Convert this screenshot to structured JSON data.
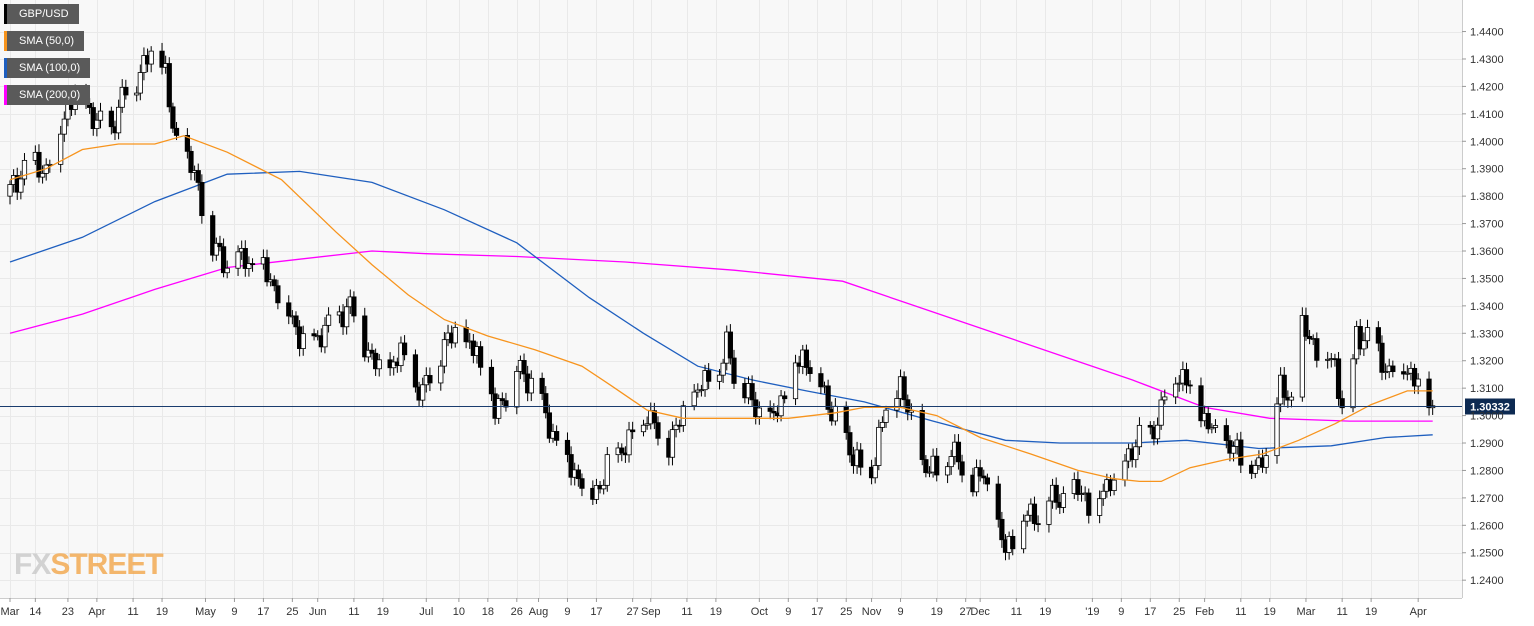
{
  "legend": [
    {
      "label": "GBP/USD",
      "color": "#000000"
    },
    {
      "label": "SMA (50,0)",
      "color": "#f7941d"
    },
    {
      "label": "SMA (100,0)",
      "color": "#1f5fbf"
    },
    {
      "label": "SMA (200,0)",
      "color": "#ff00ff"
    }
  ],
  "logo": {
    "fx": "FX",
    "street": "STREET"
  },
  "chart_data": {
    "type": "candlestick",
    "symbol": "GBP/USD",
    "grid": true,
    "legend_position": "top-left",
    "y_axis": {
      "side": "right",
      "ylim": [
        1.2335,
        1.4515
      ],
      "ticks": [
        "1.4400",
        "1.4300",
        "1.4200",
        "1.4100",
        "1.4000",
        "1.3900",
        "1.3800",
        "1.3700",
        "1.3600",
        "1.3500",
        "1.3400",
        "1.3300",
        "1.3200",
        "1.3100",
        "1.3000",
        "1.2900",
        "1.2800",
        "1.2700",
        "1.2600",
        "1.2500",
        "1.2400"
      ]
    },
    "x_axis": {
      "ticks": [
        {
          "label": "Mar",
          "day": 0
        },
        {
          "label": "14",
          "day": 7
        },
        {
          "label": "23",
          "day": 16
        },
        {
          "label": "Apr",
          "day": 24
        },
        {
          "label": "11",
          "day": 34
        },
        {
          "label": "19",
          "day": 42
        },
        {
          "label": "May",
          "day": 54
        },
        {
          "label": "9",
          "day": 62
        },
        {
          "label": "17",
          "day": 70
        },
        {
          "label": "25",
          "day": 78
        },
        {
          "label": "Jun",
          "day": 85
        },
        {
          "label": "11",
          "day": 95
        },
        {
          "label": "19",
          "day": 103
        },
        {
          "label": "Jul",
          "day": 115
        },
        {
          "label": "10",
          "day": 124
        },
        {
          "label": "18",
          "day": 132
        },
        {
          "label": "26",
          "day": 140
        },
        {
          "label": "Aug",
          "day": 146
        },
        {
          "label": "9",
          "day": 154
        },
        {
          "label": "17",
          "day": 162
        },
        {
          "label": "27",
          "day": 172
        },
        {
          "label": "Sep",
          "day": 177
        },
        {
          "label": "11",
          "day": 187
        },
        {
          "label": "19",
          "day": 195
        },
        {
          "label": "Oct",
          "day": 207
        },
        {
          "label": "9",
          "day": 215
        },
        {
          "label": "17",
          "day": 223
        },
        {
          "label": "25",
          "day": 231
        },
        {
          "label": "Nov",
          "day": 238
        },
        {
          "label": "9",
          "day": 246
        },
        {
          "label": "19",
          "day": 256
        },
        {
          "label": "27",
          "day": 264
        },
        {
          "label": "Dec",
          "day": 268
        },
        {
          "label": "11",
          "day": 278
        },
        {
          "label": "19",
          "day": 286
        },
        {
          "label": "'19",
          "day": 299
        },
        {
          "label": "9",
          "day": 307
        },
        {
          "label": "17",
          "day": 315
        },
        {
          "label": "25",
          "day": 323
        },
        {
          "label": "Feb",
          "day": 330
        },
        {
          "label": "11",
          "day": 340
        },
        {
          "label": "19",
          "day": 348
        },
        {
          "label": "Mar",
          "day": 358
        },
        {
          "label": "11",
          "day": 368
        },
        {
          "label": "19",
          "day": 376
        },
        {
          "label": "Apr",
          "day": 389
        }
      ]
    },
    "last_price": {
      "value": 1.30332,
      "label": "1.30332"
    },
    "anchors": [
      {
        "day": 0,
        "close": 1.382
      },
      {
        "day": 5,
        "close": 1.393
      },
      {
        "day": 10,
        "close": 1.39
      },
      {
        "day": 16,
        "close": 1.414
      },
      {
        "day": 20,
        "close": 1.418
      },
      {
        "day": 24,
        "close": 1.406
      },
      {
        "day": 28,
        "close": 1.405
      },
      {
        "day": 32,
        "close": 1.418
      },
      {
        "day": 36,
        "close": 1.425
      },
      {
        "day": 40,
        "close": 1.433
      },
      {
        "day": 43,
        "close": 1.425
      },
      {
        "day": 45,
        "close": 1.402
      },
      {
        "day": 49,
        "close": 1.394
      },
      {
        "day": 53,
        "close": 1.378
      },
      {
        "day": 55,
        "close": 1.362
      },
      {
        "day": 60,
        "close": 1.355
      },
      {
        "day": 65,
        "close": 1.357
      },
      {
        "day": 70,
        "close": 1.353
      },
      {
        "day": 74,
        "close": 1.346
      },
      {
        "day": 80,
        "close": 1.33
      },
      {
        "day": 83,
        "close": 1.325
      },
      {
        "day": 86,
        "close": 1.331
      },
      {
        "day": 91,
        "close": 1.337
      },
      {
        "day": 94,
        "close": 1.341
      },
      {
        "day": 98,
        "close": 1.327
      },
      {
        "day": 102,
        "close": 1.316
      },
      {
        "day": 105,
        "close": 1.318
      },
      {
        "day": 108,
        "close": 1.322
      },
      {
        "day": 111,
        "close": 1.313
      },
      {
        "day": 114,
        "close": 1.307
      },
      {
        "day": 117,
        "close": 1.319
      },
      {
        "day": 120,
        "close": 1.324
      },
      {
        "day": 123,
        "close": 1.331
      },
      {
        "day": 126,
        "close": 1.324
      },
      {
        "day": 129,
        "close": 1.323
      },
      {
        "day": 132,
        "close": 1.31
      },
      {
        "day": 134,
        "close": 1.3
      },
      {
        "day": 137,
        "close": 1.309
      },
      {
        "day": 140,
        "close": 1.317
      },
      {
        "day": 144,
        "close": 1.313
      },
      {
        "day": 148,
        "close": 1.3
      },
      {
        "day": 152,
        "close": 1.288
      },
      {
        "day": 157,
        "close": 1.278
      },
      {
        "day": 160,
        "close": 1.272
      },
      {
        "day": 163,
        "close": 1.275
      },
      {
        "day": 166,
        "close": 1.284
      },
      {
        "day": 170,
        "close": 1.29
      },
      {
        "day": 173,
        "close": 1.292
      },
      {
        "day": 176,
        "close": 1.302
      },
      {
        "day": 178,
        "close": 1.295
      },
      {
        "day": 181,
        "close": 1.288
      },
      {
        "day": 185,
        "close": 1.297
      },
      {
        "day": 189,
        "close": 1.307
      },
      {
        "day": 193,
        "close": 1.313
      },
      {
        "day": 196,
        "close": 1.315
      },
      {
        "day": 198,
        "close": 1.325
      },
      {
        "day": 201,
        "close": 1.312
      },
      {
        "day": 204,
        "close": 1.306
      },
      {
        "day": 207,
        "close": 1.302
      },
      {
        "day": 210,
        "close": 1.296
      },
      {
        "day": 213,
        "close": 1.306
      },
      {
        "day": 216,
        "close": 1.315
      },
      {
        "day": 219,
        "close": 1.322
      },
      {
        "day": 222,
        "close": 1.318
      },
      {
        "day": 225,
        "close": 1.308
      },
      {
        "day": 228,
        "close": 1.3
      },
      {
        "day": 231,
        "close": 1.29
      },
      {
        "day": 234,
        "close": 1.285
      },
      {
        "day": 237,
        "close": 1.272
      },
      {
        "day": 240,
        "close": 1.294
      },
      {
        "day": 243,
        "close": 1.306
      },
      {
        "day": 246,
        "close": 1.313
      },
      {
        "day": 249,
        "close": 1.296
      },
      {
        "day": 252,
        "close": 1.283
      },
      {
        "day": 256,
        "close": 1.278
      },
      {
        "day": 260,
        "close": 1.287
      },
      {
        "day": 263,
        "close": 1.28
      },
      {
        "day": 266,
        "close": 1.275
      },
      {
        "day": 269,
        "close": 1.278
      },
      {
        "day": 272,
        "close": 1.262
      },
      {
        "day": 275,
        "close": 1.25
      },
      {
        "day": 278,
        "close": 1.258
      },
      {
        "day": 281,
        "close": 1.263
      },
      {
        "day": 285,
        "close": 1.265
      },
      {
        "day": 289,
        "close": 1.271
      },
      {
        "day": 293,
        "close": 1.269
      },
      {
        "day": 296,
        "close": 1.275
      },
      {
        "day": 299,
        "close": 1.262
      },
      {
        "day": 302,
        "close": 1.275
      },
      {
        "day": 305,
        "close": 1.277
      },
      {
        "day": 308,
        "close": 1.285
      },
      {
        "day": 311,
        "close": 1.29
      },
      {
        "day": 315,
        "close": 1.294
      },
      {
        "day": 318,
        "close": 1.301
      },
      {
        "day": 321,
        "close": 1.318
      },
      {
        "day": 324,
        "close": 1.313
      },
      {
        "day": 327,
        "close": 1.308
      },
      {
        "day": 330,
        "close": 1.298
      },
      {
        "day": 333,
        "close": 1.292
      },
      {
        "day": 336,
        "close": 1.289
      },
      {
        "day": 339,
        "close": 1.286
      },
      {
        "day": 342,
        "close": 1.283
      },
      {
        "day": 345,
        "close": 1.279
      },
      {
        "day": 348,
        "close": 1.292
      },
      {
        "day": 351,
        "close": 1.309
      },
      {
        "day": 354,
        "close": 1.306
      },
      {
        "day": 357,
        "close": 1.331
      },
      {
        "day": 360,
        "close": 1.327
      },
      {
        "day": 363,
        "close": 1.322
      },
      {
        "day": 366,
        "close": 1.319
      },
      {
        "day": 369,
        "close": 1.297
      },
      {
        "day": 372,
        "close": 1.33
      },
      {
        "day": 375,
        "close": 1.329
      },
      {
        "day": 378,
        "close": 1.323
      },
      {
        "day": 381,
        "close": 1.316
      },
      {
        "day": 384,
        "close": 1.321
      },
      {
        "day": 387,
        "close": 1.316
      },
      {
        "day": 390,
        "close": 1.308
      },
      {
        "day": 393,
        "close": 1.303
      }
    ],
    "sma50": [
      {
        "day": 0,
        "value": 1.386
      },
      {
        "day": 10,
        "value": 1.39
      },
      {
        "day": 20,
        "value": 1.397
      },
      {
        "day": 30,
        "value": 1.399
      },
      {
        "day": 40,
        "value": 1.399
      },
      {
        "day": 48,
        "value": 1.402
      },
      {
        "day": 60,
        "value": 1.396
      },
      {
        "day": 75,
        "value": 1.386
      },
      {
        "day": 90,
        "value": 1.367
      },
      {
        "day": 100,
        "value": 1.355
      },
      {
        "day": 110,
        "value": 1.344
      },
      {
        "day": 120,
        "value": 1.335
      },
      {
        "day": 132,
        "value": 1.329
      },
      {
        "day": 145,
        "value": 1.324
      },
      {
        "day": 158,
        "value": 1.318
      },
      {
        "day": 166,
        "value": 1.311
      },
      {
        "day": 176,
        "value": 1.302
      },
      {
        "day": 186,
        "value": 1.299
      },
      {
        "day": 200,
        "value": 1.299
      },
      {
        "day": 215,
        "value": 1.299
      },
      {
        "day": 228,
        "value": 1.301
      },
      {
        "day": 236,
        "value": 1.303
      },
      {
        "day": 246,
        "value": 1.303
      },
      {
        "day": 256,
        "value": 1.3
      },
      {
        "day": 268,
        "value": 1.292
      },
      {
        "day": 282,
        "value": 1.286
      },
      {
        "day": 295,
        "value": 1.28
      },
      {
        "day": 305,
        "value": 1.277
      },
      {
        "day": 312,
        "value": 1.276
      },
      {
        "day": 318,
        "value": 1.276
      },
      {
        "day": 326,
        "value": 1.281
      },
      {
        "day": 336,
        "value": 1.284
      },
      {
        "day": 346,
        "value": 1.286
      },
      {
        "day": 356,
        "value": 1.291
      },
      {
        "day": 366,
        "value": 1.297
      },
      {
        "day": 376,
        "value": 1.304
      },
      {
        "day": 386,
        "value": 1.309
      },
      {
        "day": 393,
        "value": 1.309
      }
    ],
    "sma100": [
      {
        "day": 0,
        "value": 1.356
      },
      {
        "day": 20,
        "value": 1.365
      },
      {
        "day": 40,
        "value": 1.378
      },
      {
        "day": 60,
        "value": 1.388
      },
      {
        "day": 80,
        "value": 1.389
      },
      {
        "day": 100,
        "value": 1.385
      },
      {
        "day": 120,
        "value": 1.375
      },
      {
        "day": 140,
        "value": 1.363
      },
      {
        "day": 160,
        "value": 1.343
      },
      {
        "day": 175,
        "value": 1.33
      },
      {
        "day": 190,
        "value": 1.318
      },
      {
        "day": 205,
        "value": 1.313
      },
      {
        "day": 220,
        "value": 1.309
      },
      {
        "day": 236,
        "value": 1.305
      },
      {
        "day": 255,
        "value": 1.298
      },
      {
        "day": 275,
        "value": 1.291
      },
      {
        "day": 290,
        "value": 1.29
      },
      {
        "day": 310,
        "value": 1.29
      },
      {
        "day": 325,
        "value": 1.291
      },
      {
        "day": 345,
        "value": 1.288
      },
      {
        "day": 365,
        "value": 1.289
      },
      {
        "day": 380,
        "value": 1.292
      },
      {
        "day": 393,
        "value": 1.293
      }
    ],
    "sma200": [
      {
        "day": 0,
        "value": 1.33
      },
      {
        "day": 20,
        "value": 1.337
      },
      {
        "day": 40,
        "value": 1.346
      },
      {
        "day": 60,
        "value": 1.354
      },
      {
        "day": 80,
        "value": 1.357
      },
      {
        "day": 100,
        "value": 1.36
      },
      {
        "day": 115,
        "value": 1.359
      },
      {
        "day": 140,
        "value": 1.358
      },
      {
        "day": 170,
        "value": 1.356
      },
      {
        "day": 200,
        "value": 1.353
      },
      {
        "day": 230,
        "value": 1.349
      },
      {
        "day": 250,
        "value": 1.34
      },
      {
        "day": 270,
        "value": 1.331
      },
      {
        "day": 290,
        "value": 1.322
      },
      {
        "day": 310,
        "value": 1.313
      },
      {
        "day": 330,
        "value": 1.303
      },
      {
        "day": 348,
        "value": 1.299
      },
      {
        "day": 370,
        "value": 1.298
      },
      {
        "day": 393,
        "value": 1.298
      }
    ]
  }
}
